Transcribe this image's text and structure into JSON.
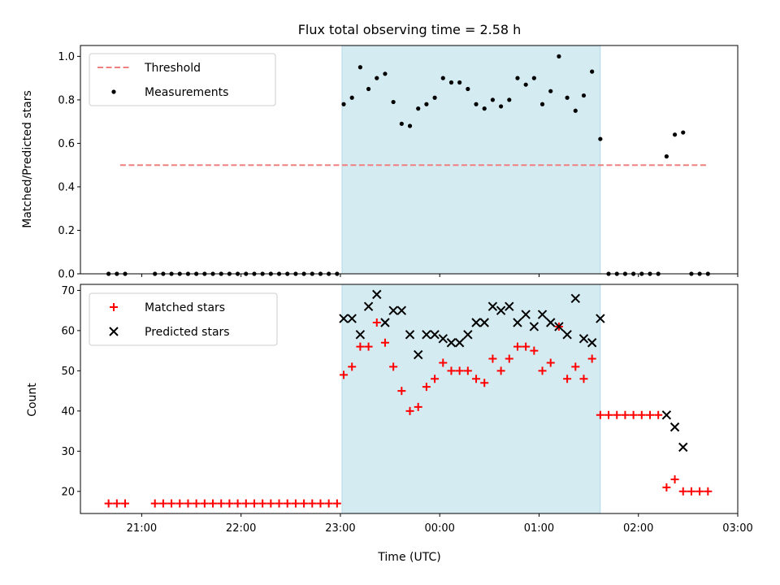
{
  "chart_data": [
    {
      "type": "scatter",
      "title": "Flux total observing time = 2.58 h",
      "xlabel": "",
      "ylabel": "Matched/Predicted stars",
      "ylim": [
        0,
        1.05
      ],
      "yticks": [
        "0.0",
        "0.2",
        "0.4",
        "0.6",
        "0.8",
        "1.0"
      ],
      "ytick_values": [
        0,
        0.2,
        0.4,
        0.6,
        0.8,
        1.0
      ],
      "legend": {
        "position": "upper-left",
        "entries": [
          "Threshold",
          "Measurements"
        ]
      },
      "shaded_region": {
        "start": "23:01",
        "end": "01:37",
        "color": "#d4ebf2"
      },
      "threshold": {
        "name": "Threshold",
        "value": 0.5,
        "x_start": "20:47",
        "x_end": "02:42",
        "color": "#f08080",
        "style": "dashed"
      },
      "series": [
        {
          "name": "Measurements",
          "color": "#000000",
          "marker": "dot",
          "x": [
            "20:40",
            "20:45",
            "20:50",
            "21:08",
            "21:13",
            "21:18",
            "21:23",
            "21:28",
            "21:33",
            "21:38",
            "21:43",
            "21:48",
            "21:53",
            "21:58",
            "22:03",
            "22:08",
            "22:13",
            "22:18",
            "22:23",
            "22:28",
            "22:33",
            "22:38",
            "22:43",
            "22:48",
            "22:53",
            "22:58",
            "23:02",
            "23:07",
            "23:12",
            "23:17",
            "23:22",
            "23:27",
            "23:32",
            "23:37",
            "23:42",
            "23:47",
            "23:52",
            "23:57",
            "00:02",
            "00:07",
            "00:12",
            "00:17",
            "00:22",
            "00:27",
            "00:32",
            "00:37",
            "00:42",
            "00:47",
            "00:52",
            "00:57",
            "01:02",
            "01:07",
            "01:12",
            "01:17",
            "01:22",
            "01:27",
            "01:32",
            "01:37",
            "01:42",
            "01:47",
            "01:52",
            "01:57",
            "02:02",
            "02:07",
            "02:12",
            "02:17",
            "02:22",
            "02:27",
            "02:32",
            "02:37",
            "02:42"
          ],
          "y": [
            0,
            0,
            0,
            0,
            0,
            0,
            0,
            0,
            0,
            0,
            0,
            0,
            0,
            0,
            0,
            0,
            0,
            0,
            0,
            0,
            0,
            0,
            0,
            0,
            0,
            0,
            0.78,
            0.81,
            0.95,
            0.85,
            0.9,
            0.92,
            0.79,
            0.69,
            0.68,
            0.76,
            0.78,
            0.81,
            0.9,
            0.88,
            0.88,
            0.85,
            0.78,
            0.76,
            0.8,
            0.77,
            0.8,
            0.9,
            0.87,
            0.9,
            0.78,
            0.84,
            1.0,
            0.81,
            0.75,
            0.82,
            0.93,
            0.62,
            0,
            0,
            0,
            0,
            0,
            0,
            0,
            0.54,
            0.64,
            0.65,
            0,
            0,
            0
          ]
        }
      ]
    },
    {
      "type": "scatter",
      "title": "",
      "xlabel": "Time (UTC)",
      "ylabel": "Count",
      "ylim": [
        14.5,
        71.5
      ],
      "yticks": [
        "20",
        "30",
        "40",
        "50",
        "60",
        "70"
      ],
      "ytick_values": [
        20,
        30,
        40,
        50,
        60,
        70
      ],
      "xticks": [
        "21:00",
        "22:00",
        "23:00",
        "00:00",
        "01:00",
        "02:00",
        "03:00"
      ],
      "xtick_values": [
        "21:00",
        "22:00",
        "23:00",
        "00:00",
        "01:00",
        "02:00",
        "03:00"
      ],
      "xlim": [
        "20:23",
        "03:00"
      ],
      "legend": {
        "position": "upper-left",
        "entries": [
          "Matched stars",
          "Predicted stars"
        ]
      },
      "shaded_region": {
        "start": "23:01",
        "end": "01:37",
        "color": "#d4ebf2"
      },
      "series": [
        {
          "name": "Matched stars",
          "color": "#ff0000",
          "marker": "plus",
          "x": [
            "20:40",
            "20:45",
            "20:50",
            "21:08",
            "21:13",
            "21:18",
            "21:23",
            "21:28",
            "21:33",
            "21:38",
            "21:43",
            "21:48",
            "21:53",
            "21:58",
            "22:03",
            "22:08",
            "22:13",
            "22:18",
            "22:23",
            "22:28",
            "22:33",
            "22:38",
            "22:43",
            "22:48",
            "22:53",
            "22:58",
            "23:02",
            "23:07",
            "23:12",
            "23:17",
            "23:22",
            "23:27",
            "23:32",
            "23:37",
            "23:42",
            "23:47",
            "23:52",
            "23:57",
            "00:02",
            "00:07",
            "00:12",
            "00:17",
            "00:22",
            "00:27",
            "00:32",
            "00:37",
            "00:42",
            "00:47",
            "00:52",
            "00:57",
            "01:02",
            "01:07",
            "01:12",
            "01:17",
            "01:22",
            "01:27",
            "01:32",
            "01:37",
            "01:42",
            "01:47",
            "01:52",
            "01:57",
            "02:02",
            "02:07",
            "02:12",
            "02:17",
            "02:22",
            "02:27",
            "02:32",
            "02:37",
            "02:42"
          ],
          "y": [
            17,
            17,
            17,
            17,
            17,
            17,
            17,
            17,
            17,
            17,
            17,
            17,
            17,
            17,
            17,
            17,
            17,
            17,
            17,
            17,
            17,
            17,
            17,
            17,
            17,
            17,
            49,
            51,
            56,
            56,
            62,
            57,
            51,
            45,
            40,
            41,
            46,
            48,
            52,
            50,
            50,
            50,
            48,
            47,
            53,
            50,
            53,
            56,
            56,
            55,
            50,
            52,
            61,
            48,
            51,
            48,
            53,
            39,
            39,
            39,
            39,
            39,
            39,
            39,
            39,
            21,
            23,
            20,
            20,
            20,
            20
          ]
        },
        {
          "name": "Predicted stars",
          "color": "#000000",
          "marker": "x",
          "x": [
            "23:02",
            "23:07",
            "23:12",
            "23:17",
            "23:22",
            "23:27",
            "23:32",
            "23:37",
            "23:42",
            "23:47",
            "23:52",
            "23:57",
            "00:02",
            "00:07",
            "00:12",
            "00:17",
            "00:22",
            "00:27",
            "00:32",
            "00:37",
            "00:42",
            "00:47",
            "00:52",
            "00:57",
            "01:02",
            "01:07",
            "01:12",
            "01:17",
            "01:22",
            "01:27",
            "01:32",
            "01:37",
            "02:17",
            "02:22",
            "02:27"
          ],
          "y": [
            63,
            63,
            59,
            66,
            69,
            62,
            65,
            65,
            59,
            54,
            59,
            59,
            58,
            57,
            57,
            59,
            62,
            62,
            66,
            65,
            66,
            62,
            64,
            61,
            64,
            62,
            61,
            59,
            68,
            58,
            57,
            63,
            39,
            36,
            31
          ]
        }
      ]
    }
  ]
}
